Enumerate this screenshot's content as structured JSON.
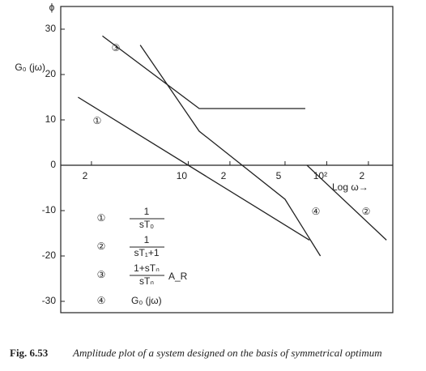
{
  "chart_data": {
    "type": "line",
    "ylabel": "G₀ (jω)",
    "ylabel_top": "ϕ",
    "xlabel": "Log ω→",
    "log_x": true,
    "xlim": [
      1.2,
      300
    ],
    "ylim": [
      -32.5,
      35
    ],
    "xticks": [
      2,
      10,
      {
        "value": 20,
        "label": "2"
      },
      {
        "value": 50,
        "label": "5"
      },
      {
        "value": 100,
        "label": "10²"
      },
      {
        "value": 200,
        "label": "2"
      }
    ],
    "yticks": [
      30,
      20,
      10,
      0,
      -10,
      -20,
      -30
    ],
    "series": [
      {
        "name": "①",
        "color": "#222222",
        "x": [
          1.6,
          75
        ],
        "values": [
          15,
          -16.5
        ],
        "numerator": "1",
        "denominator": "sT₀"
      },
      {
        "name": "②",
        "color": "#222222",
        "x": [
          72,
          270
        ],
        "values": [
          0,
          -16.5
        ],
        "numerator": "1",
        "denominator": "sT₁+1"
      },
      {
        "name": "③",
        "color": "#222222",
        "x": [
          2.4,
          12,
          70
        ],
        "values": [
          28.5,
          12.5,
          12.5
        ],
        "numerator": "1+sTₙ",
        "denominator": "sTₙ",
        "factor": "A_R"
      },
      {
        "name": "④",
        "color": "#222222",
        "x": [
          4.5,
          12,
          50,
          90
        ],
        "values": [
          26.5,
          7.5,
          -7.5,
          -20
        ],
        "formula": "G₀ (jω)"
      }
    ],
    "caption_label": "Fig. 6.53",
    "caption": "Amplitude plot of a system designed on the basis of symmetrical optimum"
  }
}
